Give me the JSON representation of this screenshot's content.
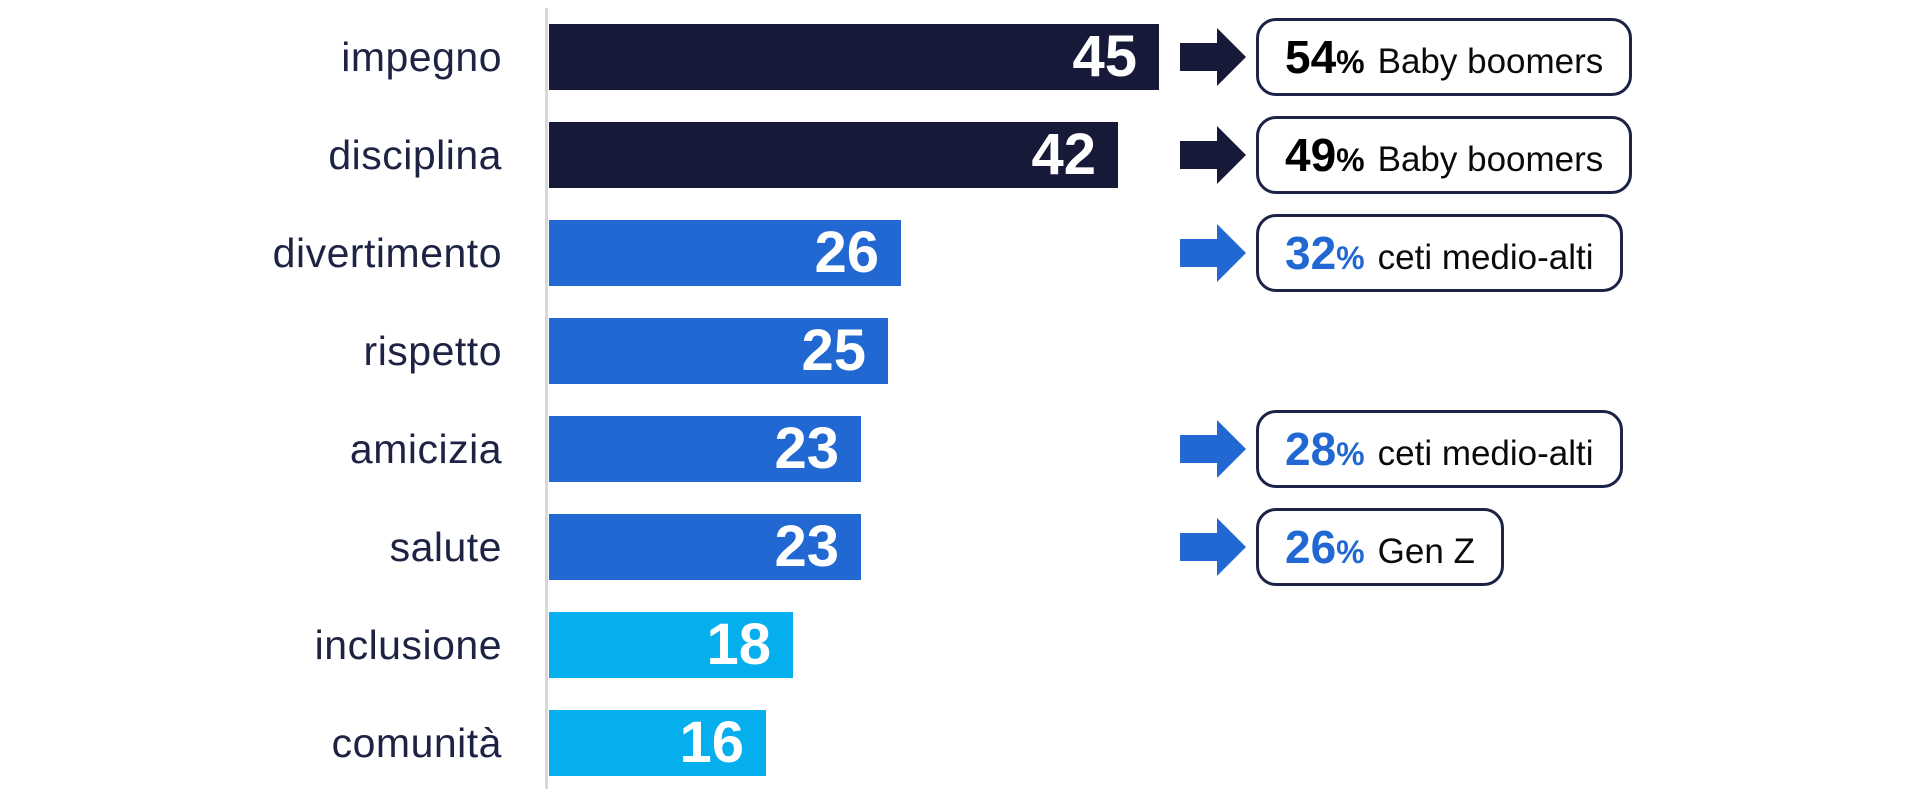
{
  "chart_data": {
    "type": "bar",
    "orientation": "horizontal",
    "title": "",
    "xlabel": "",
    "ylabel": "",
    "grid": false,
    "legend_position": "none",
    "xlim": [
      0,
      47
    ],
    "categories": [
      "impegno",
      "disciplina",
      "divertimento",
      "rispetto",
      "amicizia",
      "salute",
      "inclusione",
      "comunità"
    ],
    "values": [
      45,
      42,
      26,
      25,
      23,
      23,
      18,
      16
    ],
    "bar_colors": [
      "#161A38",
      "#161A38",
      "#2168D2",
      "#2168D2",
      "#2168D2",
      "#2168D2",
      "#05AEEC",
      "#05AEEC"
    ],
    "value_label_color": "#FFFFFF",
    "category_label_color": "#1E2344",
    "axis_line_color": "#D8D8D8",
    "callout_border_color": "#1C2347",
    "callouts": [
      {
        "category": "impegno",
        "percent": "54",
        "percent_suffix": "%",
        "label": "Baby boomers",
        "percent_color": "#000000",
        "arrow_color": "#161A38"
      },
      {
        "category": "disciplina",
        "percent": "49",
        "percent_suffix": "%",
        "label": "Baby boomers",
        "percent_color": "#000000",
        "arrow_color": "#161A38"
      },
      {
        "category": "divertimento",
        "percent": "32",
        "percent_suffix": "%",
        "label": "ceti medio-alti",
        "percent_color": "#2168D2",
        "arrow_color": "#2168D2"
      },
      {
        "category": "amicizia",
        "percent": "28",
        "percent_suffix": "%",
        "label": "ceti medio-alti",
        "percent_color": "#2168D2",
        "arrow_color": "#2168D2"
      },
      {
        "category": "salute",
        "percent": "26",
        "percent_suffix": "%",
        "label": "Gen Z",
        "percent_color": "#2168D2",
        "arrow_color": "#2168D2"
      }
    ]
  }
}
